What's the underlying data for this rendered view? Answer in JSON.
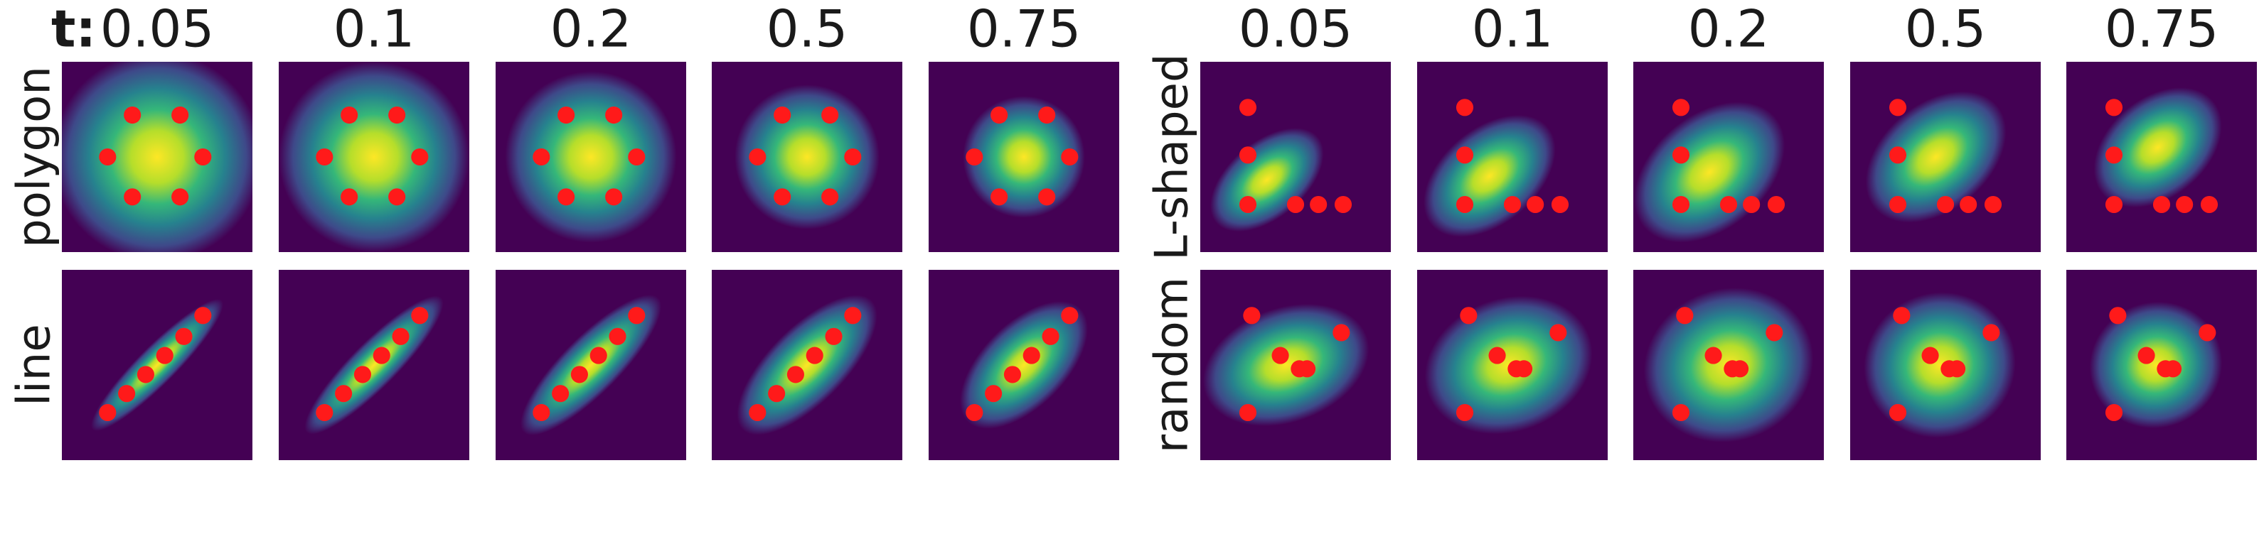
{
  "t_label": "t:",
  "left": {
    "columns": [
      0.05,
      0.1,
      0.2,
      0.5,
      0.75
    ],
    "rows": [
      "polygon",
      "line"
    ]
  },
  "right": {
    "columns": [
      0.05,
      0.1,
      0.2,
      0.5,
      0.75
    ],
    "rows": [
      "L-shaped",
      "random"
    ]
  }
}
